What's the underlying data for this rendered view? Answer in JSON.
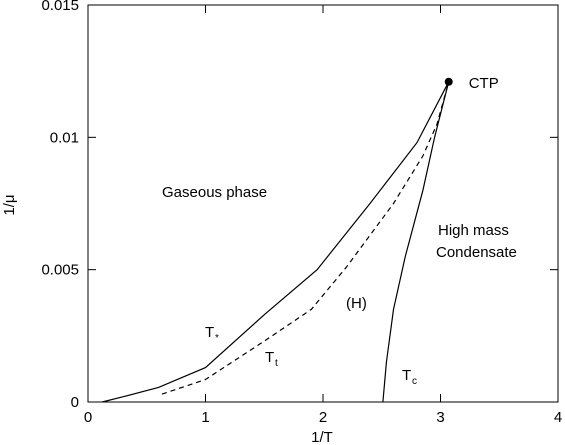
{
  "chart_data": {
    "type": "line",
    "xlabel": "1/T",
    "ylabel": "1/μ",
    "xlim": [
      0,
      4
    ],
    "ylim": [
      0,
      0.015
    ],
    "x_ticks": [
      0,
      1,
      2,
      3,
      4
    ],
    "x_tick_labels": [
      "0",
      "1",
      "2",
      "3",
      "4"
    ],
    "y_ticks": [
      0,
      0.005,
      0.01,
      0.015
    ],
    "y_tick_labels": [
      "0",
      "0.005",
      "0.01",
      "0.015"
    ],
    "grid": false,
    "series": [
      {
        "id": "tstar",
        "label": "T",
        "sub": "*",
        "style": "solid",
        "points": [
          [
            0.12,
            0.0
          ],
          [
            0.3,
            0.0002
          ],
          [
            0.6,
            0.00055
          ],
          [
            1.0,
            0.0013
          ],
          [
            1.5,
            0.0033
          ],
          [
            1.95,
            0.005
          ],
          [
            2.4,
            0.0075
          ],
          [
            2.8,
            0.0098
          ],
          [
            3.07,
            0.0121
          ]
        ]
      },
      {
        "id": "tt",
        "label": "T",
        "sub": "t",
        "style": "dashed",
        "points": [
          [
            0.63,
            0.0003
          ],
          [
            1.0,
            0.00085
          ],
          [
            1.5,
            0.0023
          ],
          [
            1.9,
            0.0035
          ],
          [
            2.2,
            0.0051
          ],
          [
            2.6,
            0.0075
          ],
          [
            2.85,
            0.0093
          ],
          [
            2.97,
            0.0105
          ],
          [
            3.07,
            0.0121
          ]
        ]
      },
      {
        "id": "tc",
        "label": "T",
        "sub": "c",
        "style": "solid",
        "points": [
          [
            2.51,
            0.0
          ],
          [
            2.54,
            0.0015
          ],
          [
            2.6,
            0.0035
          ],
          [
            2.7,
            0.0055
          ],
          [
            2.85,
            0.008
          ],
          [
            2.95,
            0.01
          ],
          [
            3.07,
            0.0121
          ]
        ]
      }
    ],
    "point": {
      "label": "CTP",
      "x": 3.07,
      "y": 0.0121
    },
    "annotations": {
      "gaseous": "Gaseous phase",
      "high_mass_1": "High mass",
      "high_mass_2": "Condensate",
      "h_region": "(H)"
    }
  }
}
